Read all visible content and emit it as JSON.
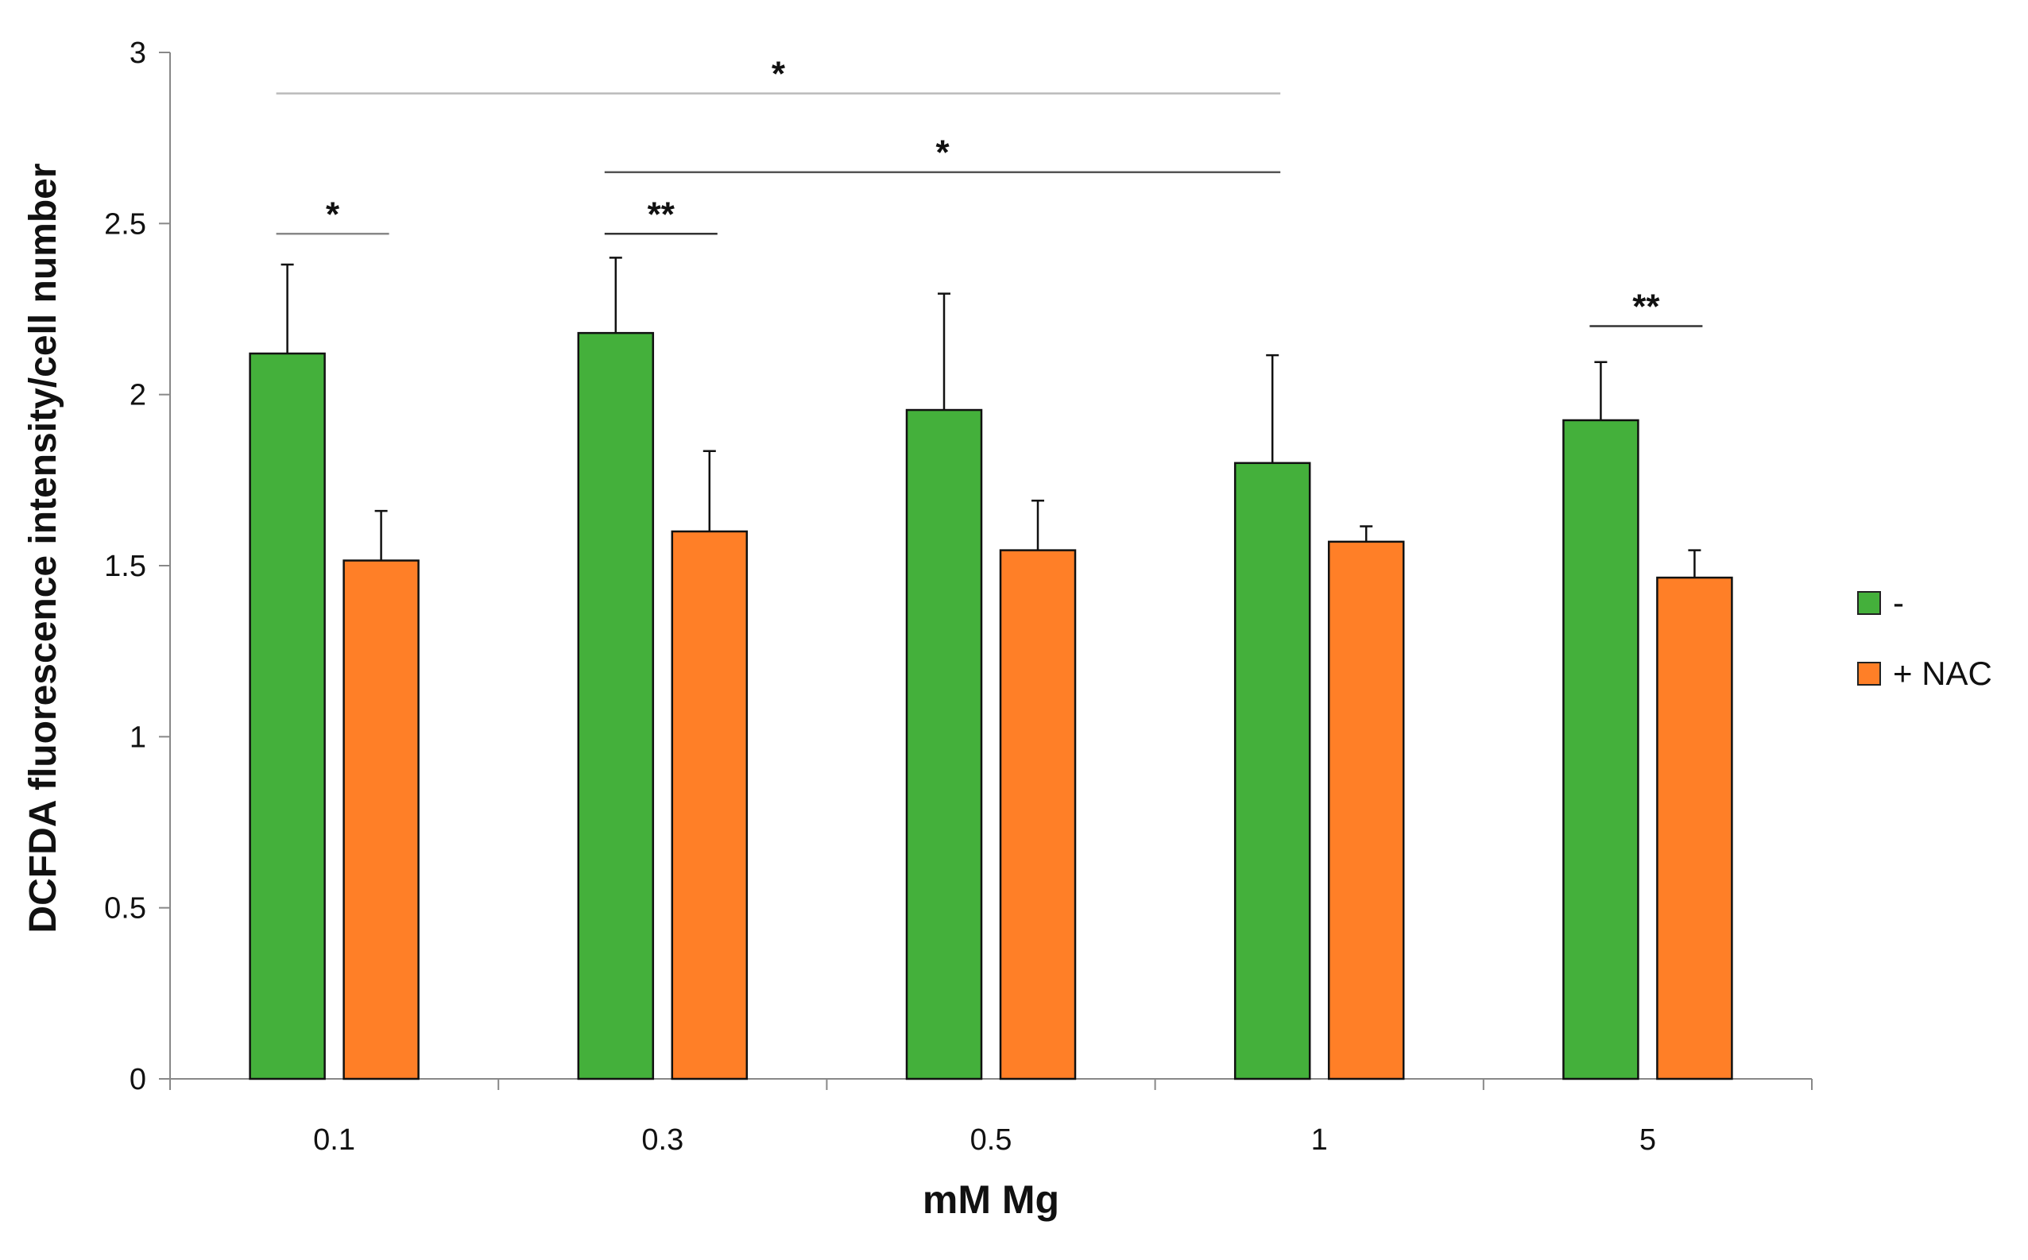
{
  "chart_data": {
    "type": "bar",
    "title": "",
    "xlabel": "mM Mg",
    "ylabel": "DCFDA fluorescence intensity/cell number",
    "categories": [
      "0.1",
      "0.3",
      "0.5",
      "1",
      "5"
    ],
    "ylim": [
      0,
      3
    ],
    "yticks": [
      "0",
      "0.5",
      "1",
      "1.5",
      "2",
      "2.5",
      "3"
    ],
    "grid": false,
    "legend_position": "right",
    "series": [
      {
        "name": "-",
        "color": "#44b03b",
        "values": [
          2.12,
          2.18,
          1.955,
          1.8,
          1.925
        ],
        "errors": [
          0.26,
          0.22,
          0.34,
          0.315,
          0.17
        ]
      },
      {
        "name": "+ NAC",
        "color": "#ff7f27",
        "values": [
          1.515,
          1.6,
          1.545,
          1.57,
          1.465
        ],
        "errors": [
          0.145,
          0.235,
          0.145,
          0.045,
          0.08
        ]
      }
    ],
    "annotations": [
      {
        "label": "*",
        "from": [
          "0.1",
          "-"
        ],
        "to": [
          "0.1",
          "+ NAC"
        ],
        "y": 2.47,
        "line_color": "#888888"
      },
      {
        "label": "**",
        "from": [
          "0.3",
          "-"
        ],
        "to": [
          "0.3",
          "+ NAC"
        ],
        "y": 2.47,
        "line_color": "#333333"
      },
      {
        "label": "**",
        "from": [
          "5",
          "-"
        ],
        "to": [
          "5",
          "+ NAC"
        ],
        "y": 2.2,
        "line_color": "#333333"
      },
      {
        "label": "*",
        "from": [
          "0.3",
          "-"
        ],
        "to": [
          "1",
          "-"
        ],
        "y": 2.65,
        "line_color": "#555555"
      },
      {
        "label": "*",
        "from": [
          "0.1",
          "-"
        ],
        "to": [
          "1",
          "-"
        ],
        "y": 2.88,
        "line_color": "#bbbbbb"
      }
    ]
  }
}
